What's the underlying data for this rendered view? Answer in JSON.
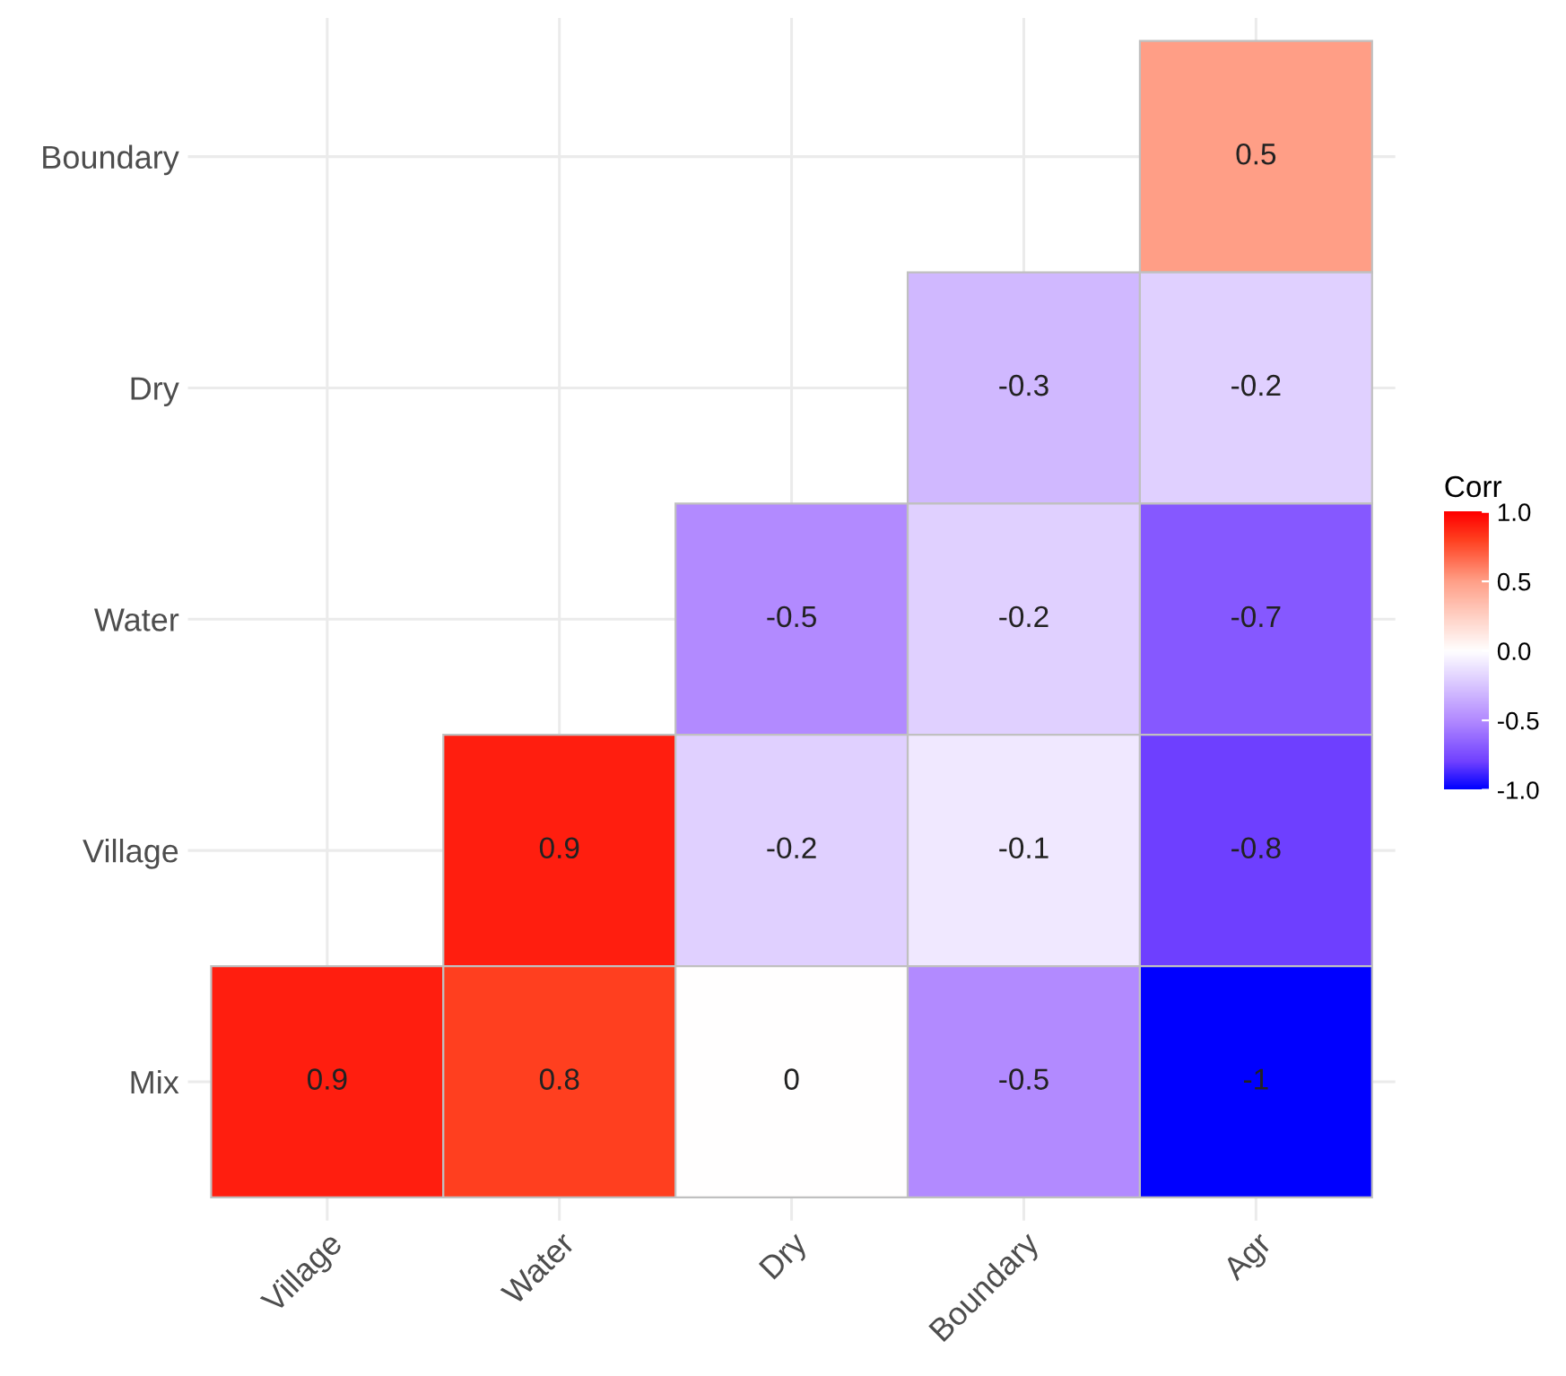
{
  "chart_data": {
    "type": "heatmap",
    "categories": [
      "Village",
      "Water",
      "Dry",
      "Boundary",
      "Agr"
    ],
    "y_categories": [
      "Boundary",
      "Dry",
      "Water",
      "Village",
      "Mix"
    ],
    "cells": [
      [
        null,
        null,
        null,
        null,
        0.5
      ],
      [
        null,
        null,
        null,
        -0.3,
        -0.2
      ],
      [
        null,
        null,
        -0.5,
        -0.2,
        -0.7
      ],
      [
        null,
        0.9,
        -0.2,
        -0.1,
        -0.8
      ],
      [
        0.9,
        0.8,
        0,
        -0.5,
        -1
      ]
    ],
    "data_labels": true,
    "clabel": "Corr",
    "clim": [
      -1,
      1
    ],
    "cticks": [
      {
        "value": -1,
        "label": "-1.0"
      },
      {
        "value": -0.5,
        "label": "-0.5"
      },
      {
        "value": 0,
        "label": "0.0"
      },
      {
        "value": 0.5,
        "label": "0.5"
      },
      {
        "value": 1,
        "label": "1.0"
      }
    ],
    "grid": true
  }
}
